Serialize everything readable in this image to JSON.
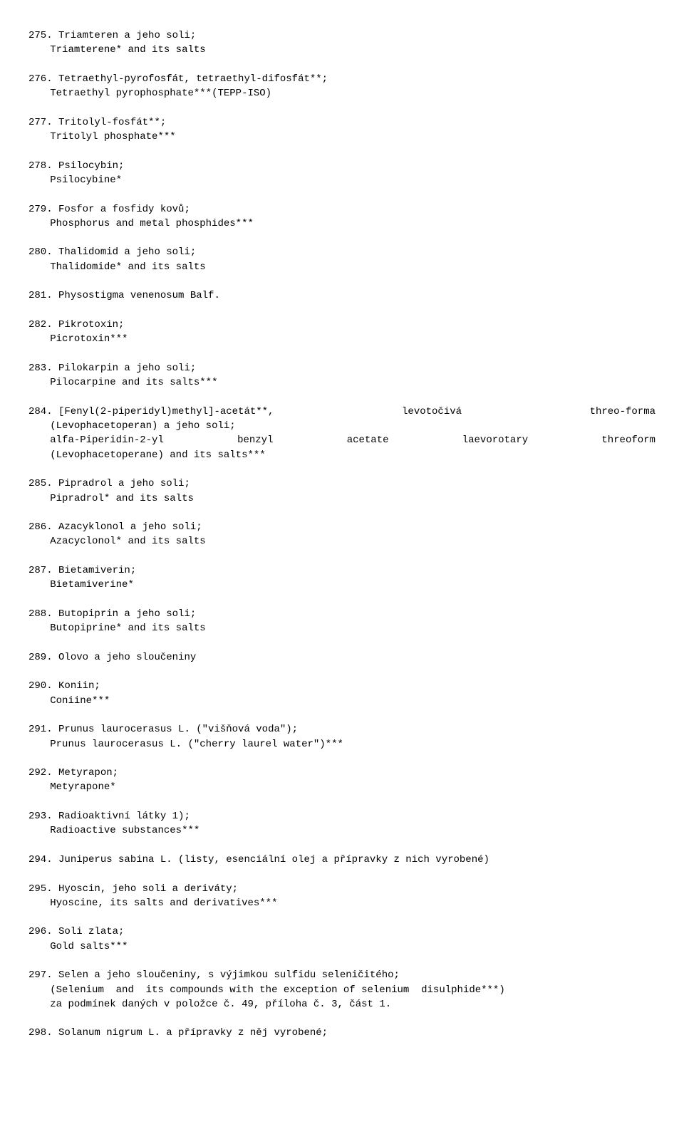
{
  "entries": [
    {
      "n": "275.",
      "lines": [
        "Triamteren a jeho soli;",
        "Triamterene* and its salts"
      ]
    },
    {
      "n": "276.",
      "lines": [
        "Tetraethyl-pyrofosfát, tetraethyl-difosfát**;",
        "Tetraethyl pyrophosphate***(TEPP-ISO)"
      ]
    },
    {
      "n": "277.",
      "lines": [
        "Tritolyl-fosfát**;",
        "Tritolyl phosphate***"
      ]
    },
    {
      "n": "278.",
      "lines": [
        "Psilocybin;",
        "Psilocybine*"
      ]
    },
    {
      "n": "279.",
      "lines": [
        "Fosfor a fosfidy kovů;",
        "Phosphorus and metal phosphides***"
      ]
    },
    {
      "n": "280.",
      "lines": [
        "Thalidomid a jeho soli;",
        "Thalidomide* and its salts"
      ]
    },
    {
      "n": "281.",
      "lines": [
        "Physostigma venenosum Balf."
      ]
    },
    {
      "n": "282.",
      "lines": [
        "Pikrotoxin;",
        "Picrotoxin***"
      ]
    },
    {
      "n": "283.",
      "lines": [
        "Pilokarpin a jeho soli;",
        "Pilocarpine and its salts***"
      ]
    },
    {
      "n": "284.",
      "special": true,
      "row1": {
        "left": "284.    [Fenyl(2-piperidyl)methyl]-acetát**,",
        "mid": "levotočivá",
        "right": "threo-forma"
      },
      "line2": "(Levophacetoperan) a jeho soli;",
      "row3": {
        "a": "alfa-Piperidin-2-yl",
        "b": "benzyl",
        "c": "acetate",
        "d": "laevorotary",
        "e": "threoform"
      },
      "line4": "(Levophacetoperane) and its salts***"
    },
    {
      "n": "285.",
      "lines": [
        "Pipradrol a jeho soli;",
        "Pipradrol* and its salts"
      ]
    },
    {
      "n": "286.",
      "lines": [
        "Azacyklonol a jeho soli;",
        "Azacyclonol* and its salts"
      ]
    },
    {
      "n": "287.",
      "lines": [
        "Bietamiverin;",
        "Bietamiverine*"
      ]
    },
    {
      "n": "288.",
      "lines": [
        "Butopiprin a jeho soli;",
        "Butopiprine* and its salts"
      ]
    },
    {
      "n": "289.",
      "lines": [
        "Olovo a jeho sloučeniny"
      ]
    },
    {
      "n": "290.",
      "lines": [
        "Koniin;",
        "Coniine***"
      ]
    },
    {
      "n": "291.",
      "lines": [
        "Prunus laurocerasus L. (\"višňová voda\");",
        "Prunus laurocerasus L. (\"cherry laurel water\")***"
      ]
    },
    {
      "n": "292.",
      "lines": [
        "Metyrapon;",
        "Metyrapone*"
      ]
    },
    {
      "n": "293.",
      "lines": [
        "Radioaktivní látky 1);",
        "Radioactive substances***"
      ]
    },
    {
      "n": "294.",
      "lines": [
        "Juniperus sabina L. (listy, esenciální olej a přípravky z nich vyrobené)"
      ]
    },
    {
      "n": "295.",
      "lines": [
        "Hyoscin, jeho soli a deriváty;",
        "Hyoscine, its salts and derivatives***"
      ]
    },
    {
      "n": "296.",
      "lines": [
        "Soli zlata;",
        "Gold salts***"
      ]
    },
    {
      "n": "297.",
      "lines": [
        "Selen a jeho sloučeniny, s výjimkou sulfidu seleničitého;",
        "(Selenium  and  its compounds with the exception of selenium  disulphide***)",
        "za podmínek daných v položce č. 49, příloha č. 3, část 1."
      ]
    },
    {
      "n": "298.",
      "lines": [
        "Solanum nigrum L. a přípravky z něj vyrobené;"
      ]
    }
  ]
}
